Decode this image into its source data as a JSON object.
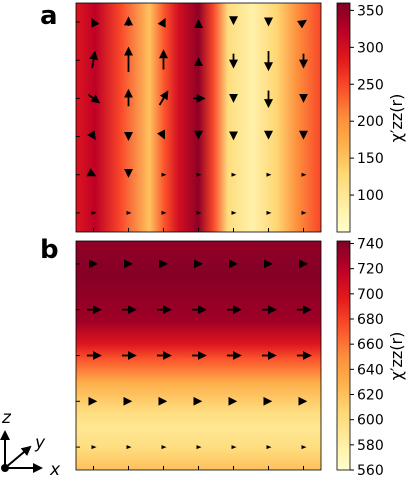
{
  "chart_data": [
    {
      "type": "heatmap",
      "panel_label": "a",
      "colormap": "YlOrRd",
      "colorbar": {
        "label": "χ′zz(r)",
        "range": [
          50,
          360
        ],
        "ticks": [
          100,
          150,
          200,
          250,
          300,
          350
        ]
      },
      "column_profile": {
        "x": [
          0,
          0.08,
          0.18,
          0.3,
          0.36,
          0.42,
          0.5,
          0.56,
          0.62,
          0.72,
          0.82,
          0.9,
          1.0
        ],
        "values": [
          290,
          320,
          250,
          150,
          240,
          300,
          350,
          250,
          120,
          80,
          130,
          200,
          250
        ]
      },
      "arrow_grid": {
        "rows": 6,
        "cols": 7,
        "scale_units": "relative length",
        "arrows": [
          [
            [
              -0.1,
              -0.2
            ],
            [
              0,
              -0.3
            ],
            [
              0.1,
              -0.2
            ],
            [
              0,
              -0.1
            ],
            [
              0,
              0.1
            ],
            [
              0,
              0.2
            ],
            [
              0.15,
              -0.1
            ]
          ],
          [
            [
              0.1,
              -0.6
            ],
            [
              0,
              -0.9
            ],
            [
              0,
              -0.7
            ],
            [
              0,
              -0.1
            ],
            [
              0,
              0.5
            ],
            [
              0,
              0.7
            ],
            [
              0,
              0.5
            ]
          ],
          [
            [
              0.4,
              0.3
            ],
            [
              0,
              -0.6
            ],
            [
              0.3,
              -0.5
            ],
            [
              0.4,
              0
            ],
            [
              0,
              0.2
            ],
            [
              0,
              0.6
            ],
            [
              0,
              0.2
            ]
          ],
          [
            [
              0.1,
              0.15
            ],
            [
              0,
              0.2
            ],
            [
              0.05,
              0.1
            ],
            [
              0,
              0.1
            ],
            [
              0,
              0.15
            ],
            [
              0,
              0.1
            ],
            [
              0,
              0.1
            ]
          ],
          [
            [
              0.1,
              0.05
            ],
            [
              0,
              0.1
            ],
            [
              0.05,
              0.05
            ],
            [
              0,
              0.05
            ],
            [
              0,
              0.05
            ],
            [
              0,
              0.05
            ],
            [
              0,
              0.05
            ]
          ],
          [
            [
              0.05,
              0
            ],
            [
              0,
              0
            ],
            [
              0.05,
              0
            ],
            [
              0,
              0
            ],
            [
              0,
              0
            ],
            [
              0,
              0
            ],
            [
              0,
              0
            ]
          ]
        ]
      }
    },
    {
      "type": "heatmap",
      "panel_label": "b",
      "colormap": "YlOrRd",
      "colorbar": {
        "label": "χ′zz(r)",
        "range": [
          560,
          742
        ],
        "ticks": [
          560,
          580,
          600,
          620,
          640,
          660,
          680,
          700,
          720,
          740
        ]
      },
      "row_profile": {
        "y": [
          0,
          0.15,
          0.35,
          0.45,
          0.52,
          0.62,
          0.75,
          0.82,
          0.9,
          1.0
        ],
        "values": [
          735,
          740,
          730,
          700,
          670,
          630,
          600,
          590,
          600,
          620
        ]
      },
      "arrow_grid": {
        "rows": 5,
        "cols": 7,
        "scale_units": "relative length",
        "arrows": [
          [
            [
              0.2,
              0
            ],
            [
              0.2,
              0
            ],
            [
              0.2,
              0
            ],
            [
              0.2,
              0
            ],
            [
              0.2,
              0
            ],
            [
              0.2,
              0
            ],
            [
              0.2,
              0
            ]
          ],
          [
            [
              0.5,
              0
            ],
            [
              0.5,
              0
            ],
            [
              0.5,
              0
            ],
            [
              0.5,
              0
            ],
            [
              0.5,
              0
            ],
            [
              0.5,
              0
            ],
            [
              0.5,
              0
            ]
          ],
          [
            [
              0.5,
              0
            ],
            [
              0.5,
              0
            ],
            [
              0.5,
              0
            ],
            [
              0.5,
              0
            ],
            [
              0.5,
              0
            ],
            [
              0.5,
              0
            ],
            [
              0.5,
              0
            ]
          ],
          [
            [
              0.15,
              0
            ],
            [
              0.15,
              0
            ],
            [
              0.15,
              0
            ],
            [
              0.15,
              0
            ],
            [
              0.15,
              0
            ],
            [
              0.15,
              0
            ],
            [
              0.15,
              0
            ]
          ],
          [
            [
              0.05,
              0
            ],
            [
              0.05,
              0
            ],
            [
              0.05,
              0
            ],
            [
              0.05,
              0
            ],
            [
              0.05,
              0
            ],
            [
              0.05,
              0
            ],
            [
              0.05,
              0
            ]
          ]
        ]
      }
    }
  ],
  "axes_triad": {
    "z": "z",
    "y": "y",
    "x": "x"
  }
}
